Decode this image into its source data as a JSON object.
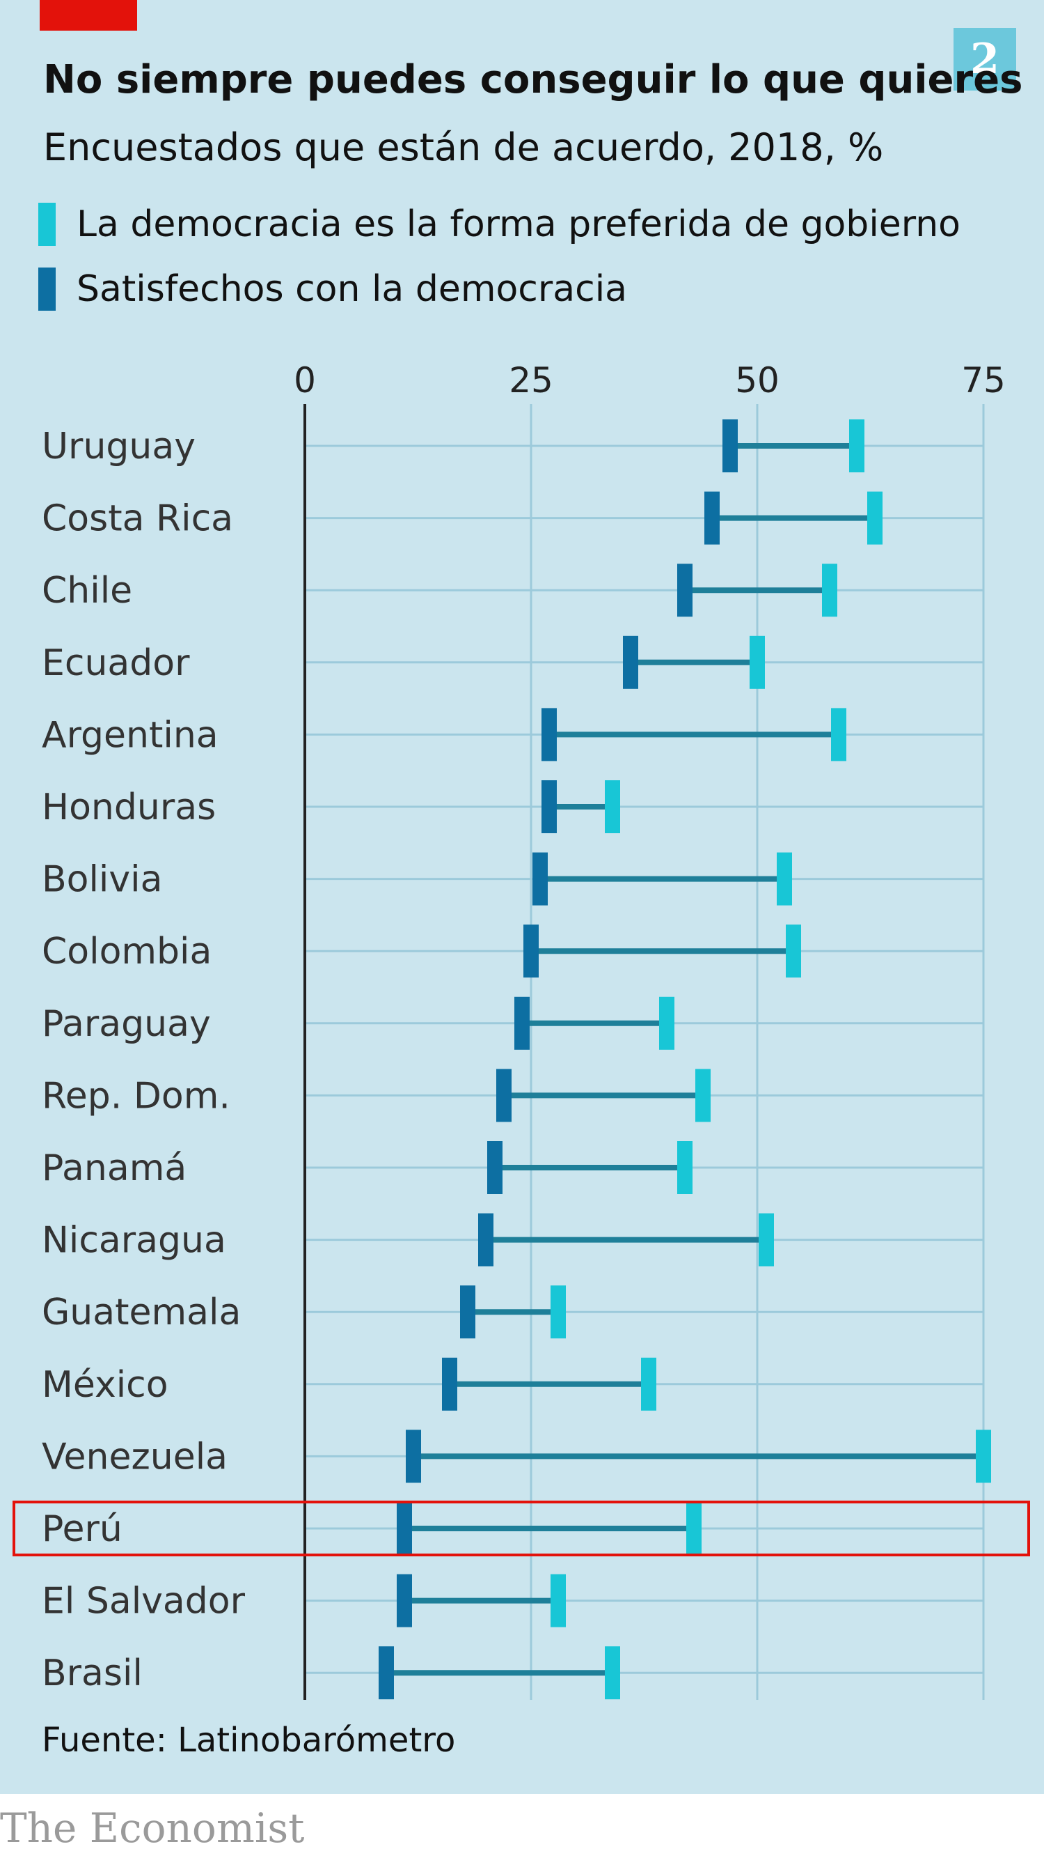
{
  "header": {
    "badge": "2",
    "title": "No siempre puedes conseguir lo que quieres",
    "subtitle": "Encuestados que están de acuerdo, 2018, %"
  },
  "legend": [
    {
      "label": "La democracia es la forma preferida de gobierno",
      "color": "#18c6d6"
    },
    {
      "label": "Satisfechos con la democracia",
      "color": "#0d6fa2"
    }
  ],
  "colors": {
    "background": "#cbe5ee",
    "gridline": "#9ccadb",
    "connector": "#1e7f99",
    "highlight": "#e3120b",
    "brand_red": "#e3120b"
  },
  "footer": {
    "source": "Fuente: Latinobarómetro",
    "brand": "The Economist"
  },
  "chart_data": {
    "type": "dumbbell",
    "xlim": [
      0,
      75
    ],
    "ticks": [
      0,
      25,
      50,
      75
    ],
    "grid": true,
    "legend_position": "top",
    "highlighted_category": "Perú",
    "categories": [
      "Uruguay",
      "Costa Rica",
      "Chile",
      "Ecuador",
      "Argentina",
      "Honduras",
      "Bolivia",
      "Colombia",
      "Paraguay",
      "Rep. Dom.",
      "Panamá",
      "Nicaragua",
      "Guatemala",
      "México",
      "Venezuela",
      "Perú",
      "El Salvador",
      "Brasil"
    ],
    "series": [
      {
        "name": "La democracia es la forma preferida de gobierno",
        "values": [
          61,
          63,
          58,
          50,
          59,
          34,
          53,
          54,
          40,
          44,
          42,
          51,
          28,
          38,
          75,
          43,
          28,
          34
        ]
      },
      {
        "name": "Satisfechos con la democracia",
        "values": [
          47,
          45,
          42,
          36,
          27,
          27,
          26,
          25,
          24,
          22,
          21,
          20,
          18,
          16,
          12,
          11,
          11,
          9
        ]
      }
    ]
  }
}
